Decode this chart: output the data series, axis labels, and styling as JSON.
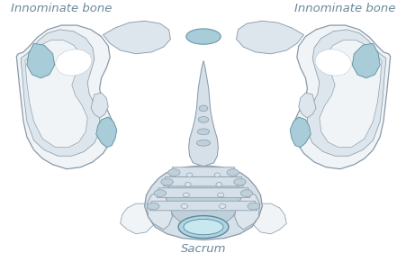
{
  "background_color": "#ffffff",
  "label_sacrum": "Sacrum",
  "label_left_bone": "Innominate bone",
  "label_right_bone": "Innominate bone",
  "label_color": "#6a8a9a",
  "label_fontsize": 9.5,
  "bone_fill_white": "#f0f4f6",
  "bone_fill_mid": "#dde6ec",
  "bone_fill_dark": "#c8d8e2",
  "bone_outline": "#8899aa",
  "cart_fill": "#a8ccd8",
  "cart_outline": "#6090a0",
  "sac_fill": "#d5e0e8",
  "sac_fill2": "#c0d0da",
  "canal_fill": "#b0d5e0",
  "canal_outline": "#5888a0",
  "line_width": 0.9,
  "figsize": [
    4.52,
    2.91
  ],
  "dpi": 100
}
